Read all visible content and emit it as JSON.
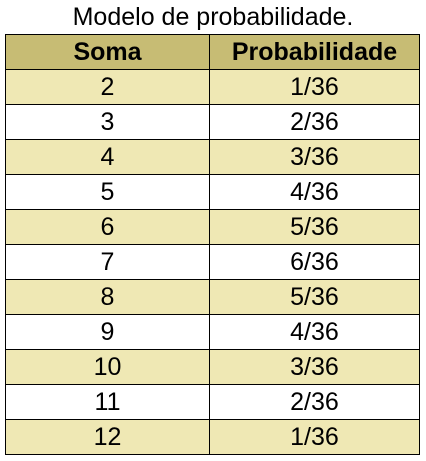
{
  "caption": "Modelo de probabilidade.",
  "colors": {
    "header_bg": "#c7bc74",
    "band_bg": "#efe8b4",
    "plain_bg": "#ffffff"
  },
  "table": {
    "headers": [
      "Soma",
      "Probabilidade"
    ],
    "rows": [
      [
        "2",
        "1/36"
      ],
      [
        "3",
        "2/36"
      ],
      [
        "4",
        "3/36"
      ],
      [
        "5",
        "4/36"
      ],
      [
        "6",
        "5/36"
      ],
      [
        "7",
        "6/36"
      ],
      [
        "8",
        "5/36"
      ],
      [
        "9",
        "4/36"
      ],
      [
        "10",
        "3/36"
      ],
      [
        "11",
        "2/36"
      ],
      [
        "12",
        "1/36"
      ]
    ]
  }
}
